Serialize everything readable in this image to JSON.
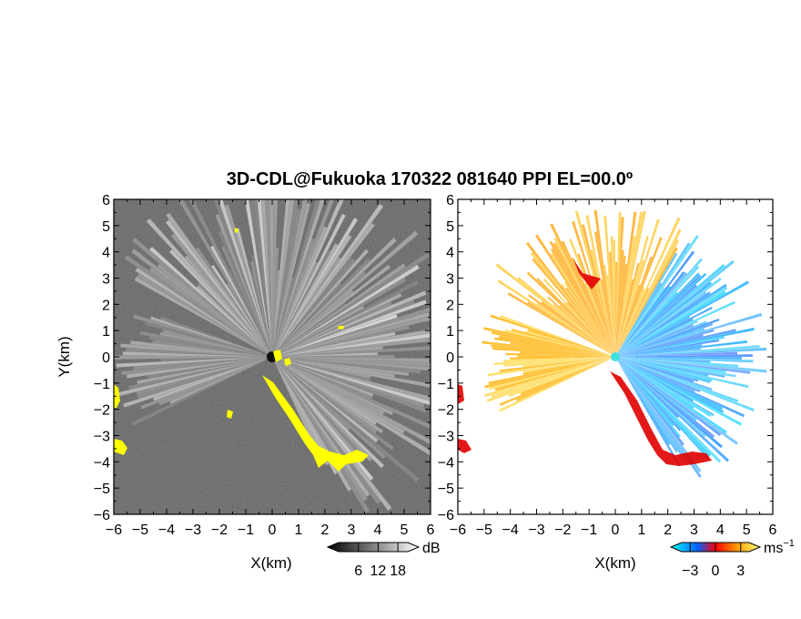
{
  "title": "3D-CDL@Fukuoka 170322 081640 PPI EL=00.0º",
  "chart_data": [
    {
      "type": "heatmap",
      "name": "panel-left-snr",
      "title": "",
      "xlabel": "X(km)",
      "ylabel": "Y(km)",
      "xlim": [
        -6,
        6
      ],
      "ylim": [
        -6,
        6
      ],
      "xticks": [
        -6,
        -5,
        -4,
        -3,
        -2,
        -1,
        0,
        1,
        2,
        3,
        4,
        5,
        6
      ],
      "yticks": [
        6,
        5,
        4,
        3,
        2,
        1,
        0,
        -1,
        -2,
        -3,
        -4,
        -5,
        -6
      ],
      "colorbar": {
        "unit": "dB",
        "ticks": [
          6,
          12,
          18
        ],
        "colors": [
          "#000000",
          "#ffffff"
        ]
      },
      "highlight_color": "#ffff00"
    },
    {
      "type": "heatmap",
      "name": "panel-right-velocity",
      "title": "",
      "xlabel": "X(km)",
      "ylabel": "",
      "xlim": [
        -6,
        6
      ],
      "ylim": [
        -6,
        6
      ],
      "xticks": [
        -6,
        -5,
        -4,
        -3,
        -2,
        -1,
        0,
        1,
        2,
        3,
        4,
        5,
        6
      ],
      "yticks": [
        6,
        5,
        4,
        3,
        2,
        1,
        0,
        -1,
        -2,
        -3,
        -4,
        -5,
        -6
      ],
      "colorbar": {
        "unit": "ms",
        "unit_exp": "−1",
        "ticks": [
          -3,
          0,
          3
        ],
        "colors": [
          "#00ffff",
          "#0060ff",
          "#ff0000",
          "#ffcc00",
          "#ffff80"
        ]
      }
    }
  ]
}
